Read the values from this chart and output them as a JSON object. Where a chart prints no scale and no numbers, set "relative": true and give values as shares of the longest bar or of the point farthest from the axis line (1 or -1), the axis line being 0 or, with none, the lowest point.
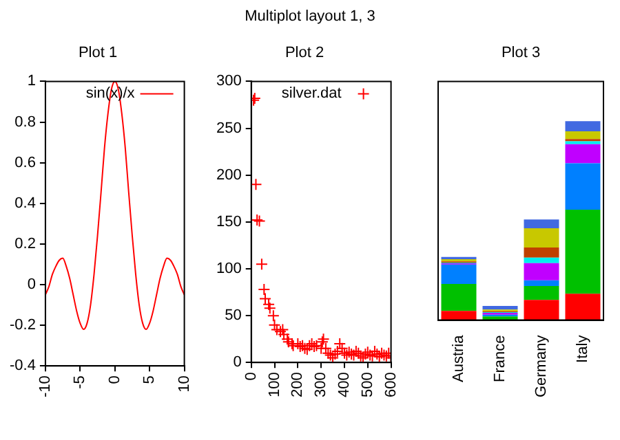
{
  "chart_data": [
    {
      "type": "line",
      "title": "Plot 1",
      "annotations": [
        "Multiplot layout 1, 3"
      ],
      "x": [
        -10,
        -9.5,
        -9,
        -8.5,
        -8,
        -7.5,
        -7,
        -6.5,
        -6,
        -5.5,
        -5,
        -4.5,
        -4,
        -3.5,
        -3,
        -2.5,
        -2,
        -1.5,
        -1,
        -0.5,
        0,
        0.5,
        1,
        1.5,
        2,
        2.5,
        3,
        3.5,
        4,
        4.5,
        5,
        5.5,
        6,
        6.5,
        7,
        7.5,
        8,
        8.5,
        9,
        9.5,
        10
      ],
      "series": [
        {
          "name": "sin(x)/x",
          "color": "#ff0000",
          "values": [
            -0.05,
            -0.01,
            0.05,
            0.09,
            0.12,
            0.13,
            0.09,
            0.03,
            -0.05,
            -0.13,
            -0.19,
            -0.22,
            -0.19,
            -0.1,
            0.05,
            0.24,
            0.45,
            0.67,
            0.84,
            0.96,
            1,
            0.96,
            0.84,
            0.67,
            0.45,
            0.24,
            0.05,
            -0.1,
            -0.19,
            -0.22,
            -0.19,
            -0.13,
            -0.05,
            0.03,
            0.09,
            0.13,
            0.12,
            0.09,
            0.05,
            -0.01,
            -0.05
          ]
        }
      ],
      "xlim": [
        -10,
        10
      ],
      "xticks": [
        -10,
        -5,
        0,
        5,
        10
      ],
      "ylim": [
        -0.4,
        1
      ],
      "yticks": [
        -0.4,
        -0.2,
        0,
        0.2,
        0.4,
        0.6,
        0.8,
        1
      ],
      "legend": "top right",
      "marker": "none",
      "line_style": "solid"
    },
    {
      "type": "scatter",
      "title": "Plot 2",
      "x": [
        10,
        15,
        20,
        25,
        35,
        45,
        55,
        60,
        75,
        80,
        95,
        100,
        110,
        125,
        135,
        140,
        155,
        160,
        175,
        180,
        200,
        210,
        220,
        230,
        240,
        250,
        260,
        270,
        280,
        300,
        305,
        310,
        320,
        330,
        340,
        350,
        360,
        370,
        380,
        390,
        400,
        410,
        420,
        430,
        440,
        450,
        460,
        470,
        480,
        490,
        500,
        510,
        520,
        530,
        540,
        550,
        560,
        570,
        580,
        590,
        600
      ],
      "series": [
        {
          "name": "silver.dat",
          "color": "#ff0000",
          "values": [
            280,
            282,
            190,
            152,
            151,
            105,
            78,
            68,
            62,
            58,
            50,
            40,
            35,
            33,
            35,
            30,
            25,
            22,
            20,
            18,
            20,
            17,
            18,
            15,
            14,
            18,
            20,
            17,
            18,
            15,
            22,
            25,
            15,
            10,
            8,
            5,
            9,
            12,
            20,
            15,
            10,
            8,
            11,
            9,
            8,
            12,
            10,
            7,
            5,
            9,
            11,
            8,
            7,
            12,
            9,
            6,
            10,
            8,
            7,
            10,
            5
          ]
        }
      ],
      "xlim": [
        0,
        600
      ],
      "xticks": [
        0,
        100,
        200,
        300,
        400,
        500,
        600
      ],
      "ylim": [
        0,
        300
      ],
      "yticks": [
        0,
        50,
        100,
        150,
        200,
        250,
        300
      ],
      "legend": "top right",
      "marker": "cross"
    },
    {
      "type": "bar",
      "title": "Plot 3",
      "categories": [
        "Austria",
        "France",
        "Germany",
        "Italy"
      ],
      "stacked": true,
      "relative": true,
      "series": [
        {
          "color": "#ff0000",
          "values": [
            0.046,
            null,
            0.101,
            0.132
          ]
        },
        {
          "color": "#00c000",
          "values": [
            0.136,
            0.018,
            0.07,
            0.423
          ]
        },
        {
          "color": "#0080ff",
          "values": [
            0.097,
            0.009,
            0.029,
            0.233
          ]
        },
        {
          "color": "#c000ff",
          "values": [
            0.006,
            0.009,
            0.086,
            0.096
          ]
        },
        {
          "color": "#00eeee",
          "values": [
            0.004,
            0.004,
            0.028,
            0.015
          ]
        },
        {
          "color": "#c04000",
          "values": [
            0.006,
            0.004,
            0.051,
            0.011
          ]
        },
        {
          "color": "#c8c800",
          "values": [
            0.011,
            0.009,
            0.097,
            0.039
          ]
        },
        {
          "color": "#4169e1",
          "values": [
            0.011,
            0.018,
            0.044,
            0.051
          ]
        }
      ]
    }
  ]
}
